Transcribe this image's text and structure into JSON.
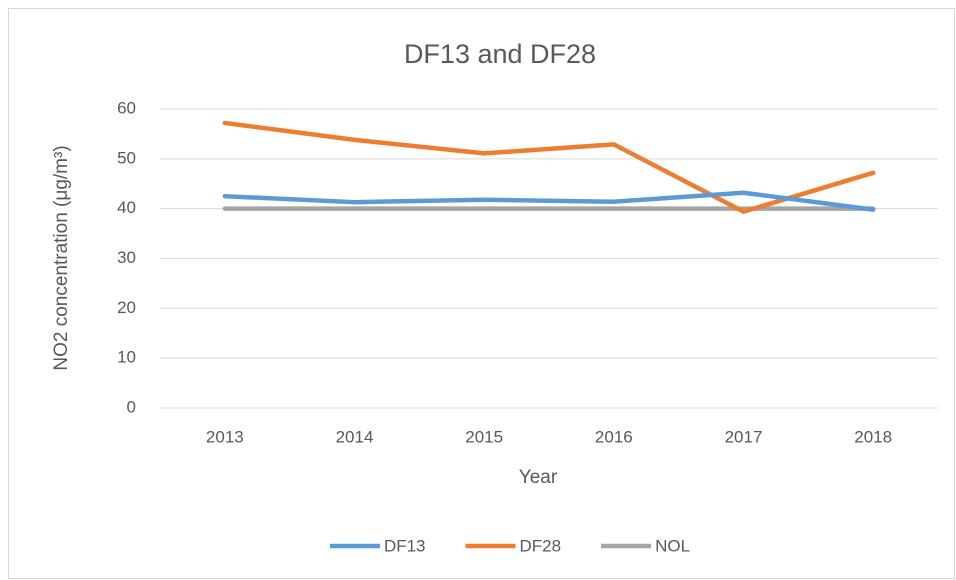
{
  "chart_data": {
    "type": "line",
    "title": "DF13 and DF28",
    "x_label": "Year",
    "y_label": "NO2 concentration (μg/m³)",
    "categories": [
      "2013",
      "2014",
      "2015",
      "2016",
      "2017",
      "2018"
    ],
    "series": [
      {
        "name": "DF13",
        "color": "#5b9bd5",
        "values": [
          42.5,
          41.3,
          41.8,
          41.4,
          43.2,
          39.8
        ]
      },
      {
        "name": "DF28",
        "color": "#ed7d31",
        "values": [
          57.2,
          53.8,
          51.1,
          52.9,
          39.4,
          47.2
        ]
      },
      {
        "name": "NOL",
        "color": "#a5a5a5",
        "values": [
          40,
          40,
          40,
          40,
          40,
          40
        ]
      }
    ],
    "ylim": [
      0,
      60
    ],
    "yticks": [
      0,
      10,
      20,
      30,
      40,
      50,
      60
    ],
    "grid": true,
    "legend": "bottom"
  }
}
